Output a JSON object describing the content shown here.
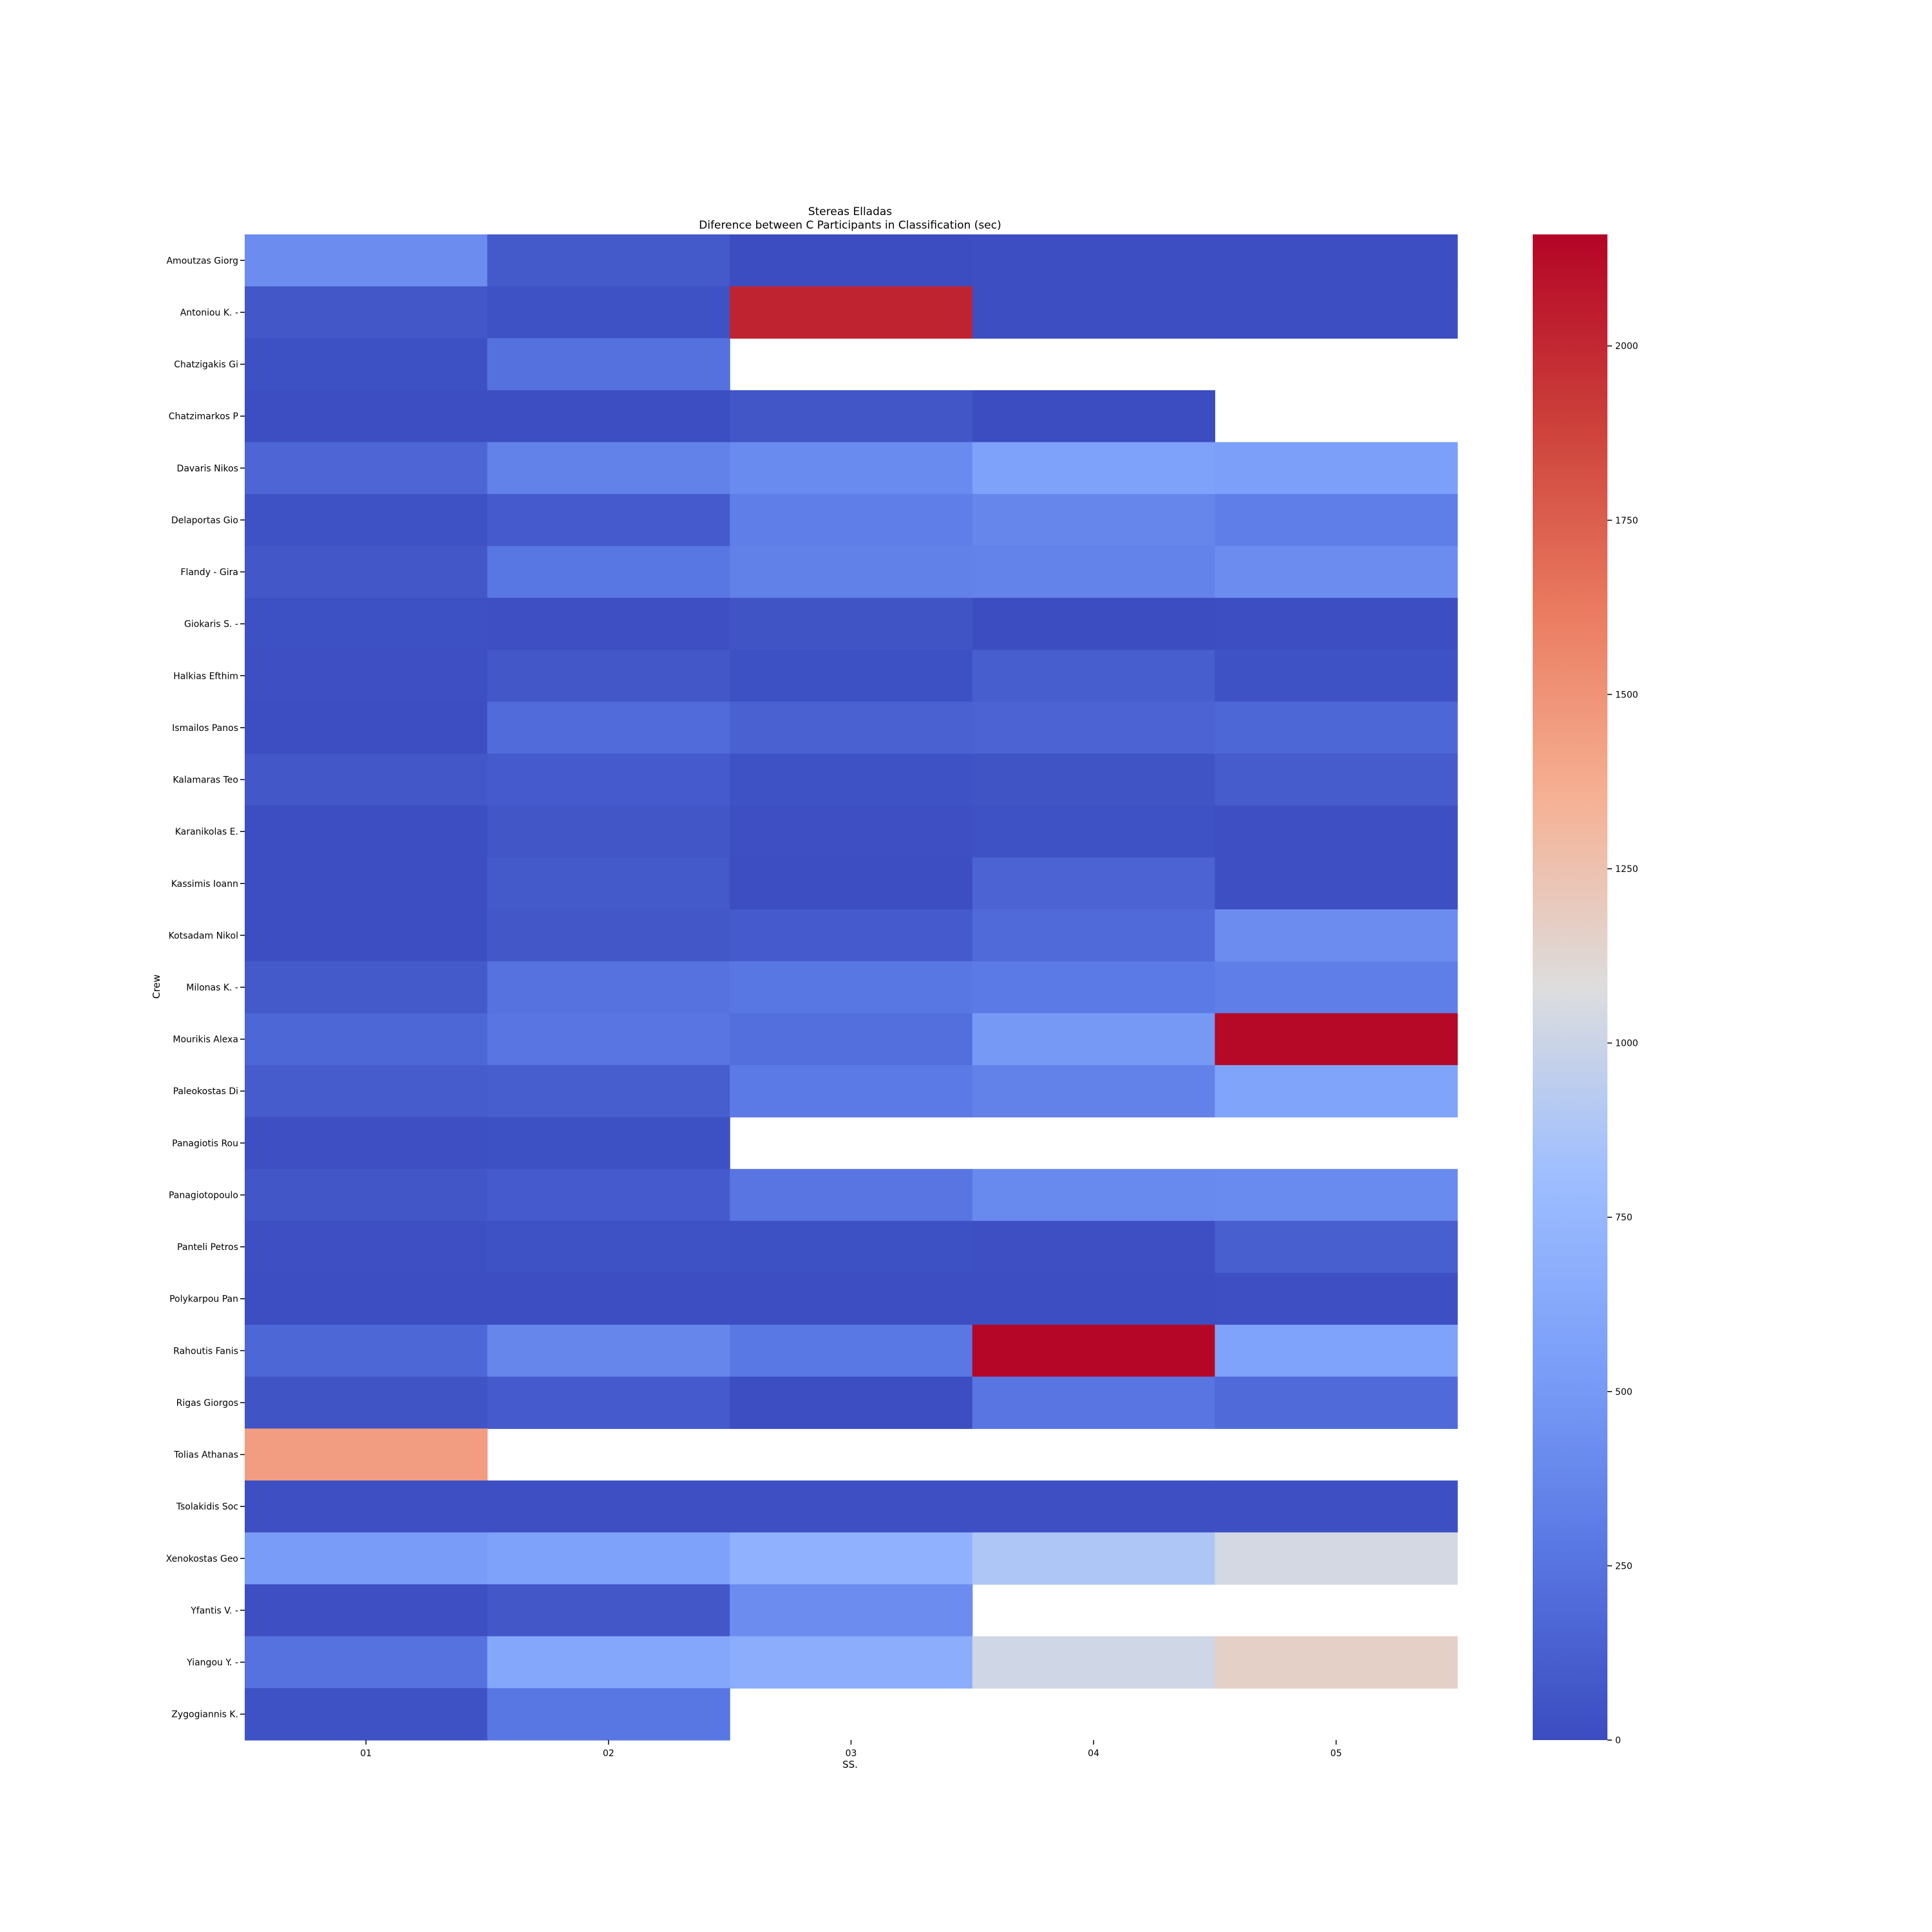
{
  "chart_data": {
    "type": "heatmap",
    "title": "Stereas Elladas",
    "subtitle": "Diference between C Participants in Classification (sec)",
    "xlabel": "SS.",
    "ylabel": "Crew",
    "x": [
      "01",
      "02",
      "03",
      "04",
      "05"
    ],
    "y": [
      "Amoutzas Giorg",
      "Antoniou K.  -",
      "Chatzigakis Gi",
      "Chatzimarkos P",
      "Davaris Nikos ",
      "Delaportas Gio",
      "Flandy  - Gira",
      "Giokaris S.  -",
      "Halkias Efthim",
      "Ismailos Panos",
      "Kalamaras Teo ",
      "Karanikolas E.",
      "Kassimis Ioann",
      "Kotsadam Nikol",
      "Milonas K.  -",
      "Mourikis Alexa",
      "Paleokostas Di",
      "Panagiotis Rou",
      "Panagiotopoulo",
      "Panteli Petros",
      "Polykarpou Pan",
      "Rahoutis Fanis",
      "Rigas Giorgos ",
      "Tolias Athanas",
      "Tsolakidis Soc",
      "Xenokostas Geo",
      "Yfantis V.  -",
      "Yiangou Y.  -",
      "Zygogiannis K."
    ],
    "values": [
      [
        420,
        80,
        5,
        10,
        10
      ],
      [
        70,
        40,
        2020,
        10,
        15
      ],
      [
        30,
        230,
        null,
        null,
        null
      ],
      [
        10,
        10,
        60,
        5,
        null
      ],
      [
        160,
        340,
        400,
        560,
        550
      ],
      [
        40,
        90,
        320,
        370,
        320
      ],
      [
        70,
        270,
        330,
        350,
        420
      ],
      [
        30,
        20,
        50,
        5,
        10
      ],
      [
        20,
        70,
        30,
        110,
        40
      ],
      [
        10,
        200,
        130,
        150,
        170
      ],
      [
        70,
        90,
        40,
        50,
        100
      ],
      [
        10,
        60,
        20,
        40,
        20
      ],
      [
        10,
        80,
        10,
        150,
        20
      ],
      [
        10,
        70,
        90,
        190,
        420
      ],
      [
        80,
        240,
        270,
        290,
        320
      ],
      [
        170,
        260,
        220,
        500,
        2140
      ],
      [
        100,
        110,
        290,
        340,
        580
      ],
      [
        20,
        30,
        null,
        null,
        null
      ],
      [
        60,
        90,
        260,
        390,
        400
      ],
      [
        20,
        40,
        30,
        20,
        120
      ],
      [
        10,
        10,
        10,
        10,
        20
      ],
      [
        170,
        370,
        280,
        2150,
        570
      ],
      [
        50,
        90,
        10,
        260,
        190
      ],
      [
        1450,
        null,
        null,
        null,
        null
      ],
      [
        20,
        20,
        20,
        20,
        20
      ],
      [
        520,
        560,
        700,
        880,
        1040
      ],
      [
        20,
        70,
        420,
        null,
        null
      ],
      [
        240,
        610,
        660,
        1020,
        1160
      ],
      [
        40,
        270,
        null,
        null,
        null
      ]
    ],
    "vmin": 0,
    "vmax": 2160,
    "colorbar_ticks": [
      0,
      250,
      500,
      750,
      1000,
      1250,
      1500,
      1750,
      2000
    ],
    "colormap": "coolwarm",
    "grid": false,
    "legend": "colorbar-right"
  }
}
